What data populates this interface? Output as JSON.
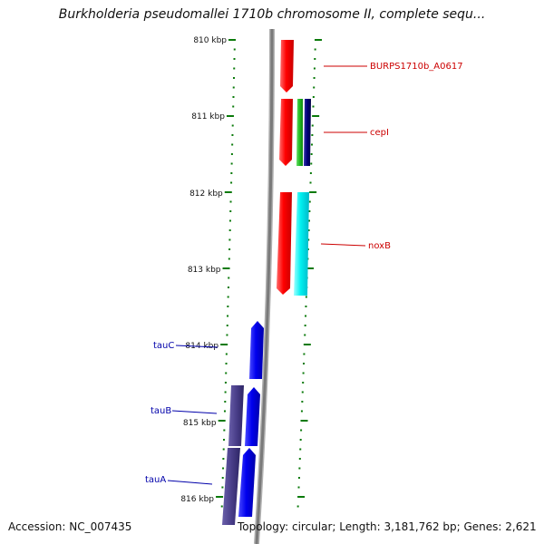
{
  "title": "Burkholderia pseudomallei 1710b chromosome II, complete sequ...",
  "footer": {
    "accession": "Accession: NC_007435",
    "info": "Topology: circular; Length: 3,181,762 bp; Genes: 2,621"
  },
  "ticks": [
    "810 kbp",
    "811 kbp",
    "812 kbp",
    "813 kbp",
    "814 kbp",
    "815 kbp",
    "816 kbp"
  ],
  "labels": [
    {
      "text": "BURPS1710b_A0617",
      "color": "#cc0000"
    },
    {
      "text": "cepI",
      "color": "#cc0000"
    },
    {
      "text": "noxB",
      "color": "#cc0000"
    },
    {
      "text": "tauC",
      "color": "#0000aa"
    },
    {
      "text": "tauB",
      "color": "#0000aa"
    },
    {
      "text": "tauA",
      "color": "#0000aa"
    }
  ],
  "colors": {
    "backbone": "#888888",
    "tick": "#0a7a0a",
    "red": "#ff0000",
    "green": "#22bb22",
    "navy": "#000066",
    "cyan": "#00f0f0",
    "blue": "#0000ee",
    "purple": "#4a3f8a"
  }
}
